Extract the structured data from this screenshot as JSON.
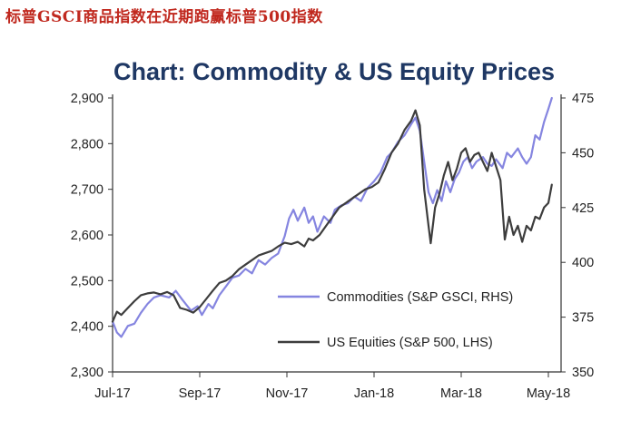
{
  "headline": "标普GSCI商品指数在近期跑赢标普500指数",
  "colors": {
    "headline": "#c0281e",
    "title": "#1f3864",
    "commodities": "#8585e0",
    "equities": "#3d3d3d",
    "axis": "#333333"
  },
  "chart_data": {
    "type": "line",
    "title": "Chart: Commodity & US Equity Prices",
    "x_tick_labels": [
      "Jul-17",
      "Sep-17",
      "Nov-17",
      "Jan-18",
      "Mar-18",
      "May-18"
    ],
    "x_tick_months": [
      0,
      2,
      4,
      6,
      8,
      10
    ],
    "xlim": [
      0,
      10
    ],
    "left_axis": {
      "min": 2300,
      "max": 2900,
      "ticks": [
        2300,
        2400,
        2500,
        2600,
        2700,
        2800,
        2900
      ],
      "labels": [
        "2,300",
        "2,400",
        "2,500",
        "2,600",
        "2,700",
        "2,800",
        "2,900"
      ]
    },
    "right_axis": {
      "min": 350,
      "max": 475,
      "ticks": [
        350,
        375,
        400,
        425,
        450,
        475
      ],
      "labels": [
        "350",
        "375",
        "400",
        "425",
        "450",
        "475"
      ]
    },
    "legend_location": "bottom-right",
    "series": [
      {
        "name": "Commodities (S&P GSCI, RHS)",
        "axis": "right",
        "color": "#8585e0",
        "points": [
          [
            0,
            373
          ],
          [
            0.1,
            368
          ],
          [
            0.2,
            366
          ],
          [
            0.35,
            371
          ],
          [
            0.5,
            372
          ],
          [
            0.65,
            377
          ],
          [
            0.8,
            381
          ],
          [
            0.95,
            384
          ],
          [
            1.1,
            385
          ],
          [
            1.3,
            384
          ],
          [
            1.45,
            387
          ],
          [
            1.6,
            383
          ],
          [
            1.8,
            378
          ],
          [
            1.95,
            380
          ],
          [
            2.05,
            376
          ],
          [
            2.2,
            381
          ],
          [
            2.3,
            379
          ],
          [
            2.45,
            385
          ],
          [
            2.6,
            389
          ],
          [
            2.75,
            393
          ],
          [
            2.9,
            394
          ],
          [
            3.05,
            397
          ],
          [
            3.2,
            395
          ],
          [
            3.35,
            401
          ],
          [
            3.5,
            399
          ],
          [
            3.65,
            402
          ],
          [
            3.8,
            404
          ],
          [
            3.95,
            412
          ],
          [
            4.05,
            420
          ],
          [
            4.15,
            424
          ],
          [
            4.25,
            419
          ],
          [
            4.4,
            425
          ],
          [
            4.5,
            418
          ],
          [
            4.6,
            421
          ],
          [
            4.7,
            414
          ],
          [
            4.85,
            421
          ],
          [
            5.0,
            418
          ],
          [
            5.1,
            424
          ],
          [
            5.25,
            426
          ],
          [
            5.4,
            427
          ],
          [
            5.55,
            430
          ],
          [
            5.7,
            428
          ],
          [
            5.85,
            434
          ],
          [
            6.0,
            437
          ],
          [
            6.15,
            441
          ],
          [
            6.3,
            448
          ],
          [
            6.4,
            450
          ],
          [
            6.55,
            455
          ],
          [
            6.7,
            458
          ],
          [
            6.85,
            463
          ],
          [
            6.95,
            466
          ],
          [
            7.05,
            460
          ],
          [
            7.15,
            446
          ],
          [
            7.25,
            432
          ],
          [
            7.35,
            427
          ],
          [
            7.45,
            433
          ],
          [
            7.55,
            428
          ],
          [
            7.65,
            437
          ],
          [
            7.75,
            432
          ],
          [
            7.85,
            438
          ],
          [
            7.95,
            441
          ],
          [
            8.05,
            446
          ],
          [
            8.15,
            448
          ],
          [
            8.25,
            443
          ],
          [
            8.35,
            446
          ],
          [
            8.5,
            448
          ],
          [
            8.6,
            445
          ],
          [
            8.7,
            444
          ],
          [
            8.8,
            447
          ],
          [
            8.95,
            443
          ],
          [
            9.05,
            450
          ],
          [
            9.15,
            448
          ],
          [
            9.3,
            452
          ],
          [
            9.4,
            448
          ],
          [
            9.5,
            445
          ],
          [
            9.6,
            448
          ],
          [
            9.7,
            458
          ],
          [
            9.8,
            456
          ],
          [
            9.9,
            464
          ],
          [
            10.0,
            470
          ],
          [
            10.08,
            475
          ]
        ]
      },
      {
        "name": "US Equities (S&P 500, LHS)",
        "axis": "left",
        "color": "#3d3d3d",
        "points": [
          [
            0,
            2410
          ],
          [
            0.1,
            2432
          ],
          [
            0.2,
            2425
          ],
          [
            0.35,
            2440
          ],
          [
            0.5,
            2455
          ],
          [
            0.65,
            2468
          ],
          [
            0.8,
            2472
          ],
          [
            0.95,
            2474
          ],
          [
            1.1,
            2470
          ],
          [
            1.25,
            2475
          ],
          [
            1.4,
            2468
          ],
          [
            1.55,
            2440
          ],
          [
            1.7,
            2436
          ],
          [
            1.85,
            2430
          ],
          [
            2.0,
            2442
          ],
          [
            2.15,
            2460
          ],
          [
            2.3,
            2478
          ],
          [
            2.45,
            2495
          ],
          [
            2.6,
            2500
          ],
          [
            2.75,
            2510
          ],
          [
            2.9,
            2525
          ],
          [
            3.05,
            2535
          ],
          [
            3.2,
            2545
          ],
          [
            3.35,
            2555
          ],
          [
            3.5,
            2560
          ],
          [
            3.65,
            2565
          ],
          [
            3.8,
            2575
          ],
          [
            3.95,
            2583
          ],
          [
            4.1,
            2580
          ],
          [
            4.25,
            2585
          ],
          [
            4.4,
            2575
          ],
          [
            4.5,
            2592
          ],
          [
            4.6,
            2588
          ],
          [
            4.75,
            2600
          ],
          [
            4.9,
            2620
          ],
          [
            5.05,
            2640
          ],
          [
            5.2,
            2660
          ],
          [
            5.35,
            2670
          ],
          [
            5.5,
            2680
          ],
          [
            5.65,
            2690
          ],
          [
            5.8,
            2700
          ],
          [
            5.95,
            2705
          ],
          [
            6.1,
            2715
          ],
          [
            6.25,
            2745
          ],
          [
            6.4,
            2780
          ],
          [
            6.55,
            2800
          ],
          [
            6.7,
            2830
          ],
          [
            6.85,
            2850
          ],
          [
            6.95,
            2873
          ],
          [
            7.05,
            2840
          ],
          [
            7.15,
            2700
          ],
          [
            7.25,
            2620
          ],
          [
            7.3,
            2582
          ],
          [
            7.4,
            2660
          ],
          [
            7.5,
            2690
          ],
          [
            7.6,
            2730
          ],
          [
            7.7,
            2760
          ],
          [
            7.8,
            2720
          ],
          [
            7.9,
            2745
          ],
          [
            8.0,
            2780
          ],
          [
            8.1,
            2790
          ],
          [
            8.2,
            2760
          ],
          [
            8.3,
            2775
          ],
          [
            8.4,
            2780
          ],
          [
            8.5,
            2760
          ],
          [
            8.6,
            2740
          ],
          [
            8.7,
            2780
          ],
          [
            8.8,
            2750
          ],
          [
            8.9,
            2720
          ],
          [
            9.0,
            2590
          ],
          [
            9.1,
            2640
          ],
          [
            9.2,
            2600
          ],
          [
            9.3,
            2620
          ],
          [
            9.4,
            2585
          ],
          [
            9.5,
            2620
          ],
          [
            9.6,
            2610
          ],
          [
            9.7,
            2640
          ],
          [
            9.8,
            2635
          ],
          [
            9.9,
            2660
          ],
          [
            10.0,
            2670
          ],
          [
            10.08,
            2710
          ]
        ]
      }
    ]
  }
}
